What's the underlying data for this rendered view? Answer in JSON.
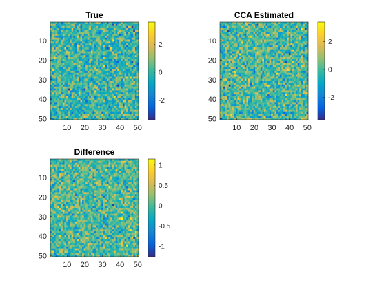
{
  "chart_data": [
    {
      "type": "heatmap",
      "title": "True",
      "matrix_size": [
        50,
        50
      ],
      "xticks": [
        10,
        20,
        30,
        40,
        50
      ],
      "yticks": [
        10,
        20,
        30,
        40,
        50
      ],
      "xlim": [
        0.5,
        50.5
      ],
      "ylim": [
        0.5,
        50.5
      ],
      "y_direction": "reverse",
      "clim": [
        -3.4,
        3.6
      ],
      "colorbar_ticks": [
        -2,
        0,
        2
      ],
      "colormap": "parula",
      "value_spread": 1.0
    },
    {
      "type": "heatmap",
      "title": "CCA Estimated",
      "matrix_size": [
        50,
        50
      ],
      "xticks": [
        10,
        20,
        30,
        40,
        50
      ],
      "yticks": [
        10,
        20,
        30,
        40,
        50
      ],
      "xlim": [
        0.5,
        50.5
      ],
      "ylim": [
        0.5,
        50.5
      ],
      "y_direction": "reverse",
      "clim": [
        -3.6,
        3.4
      ],
      "colorbar_ticks": [
        -2,
        0,
        2
      ],
      "colormap": "parula",
      "value_spread": 1.0
    },
    {
      "type": "heatmap",
      "title": "Difference",
      "matrix_size": [
        50,
        50
      ],
      "xticks": [
        10,
        20,
        30,
        40,
        50
      ],
      "yticks": [
        10,
        20,
        30,
        40,
        50
      ],
      "xlim": [
        0.5,
        50.5
      ],
      "ylim": [
        0.5,
        50.5
      ],
      "y_direction": "reverse",
      "clim": [
        -1.25,
        1.15
      ],
      "colorbar_ticks": [
        -1,
        -0.5,
        0,
        0.5,
        1
      ],
      "colormap": "parula",
      "value_spread": 0.33
    }
  ],
  "colors": {
    "parula": [
      "#352A87",
      "#0363E1",
      "#1485D4",
      "#06A7C6",
      "#38B99E",
      "#92BF73",
      "#D9BA56",
      "#FCCE2E",
      "#F9FB0E"
    ],
    "axis": "#262626"
  }
}
